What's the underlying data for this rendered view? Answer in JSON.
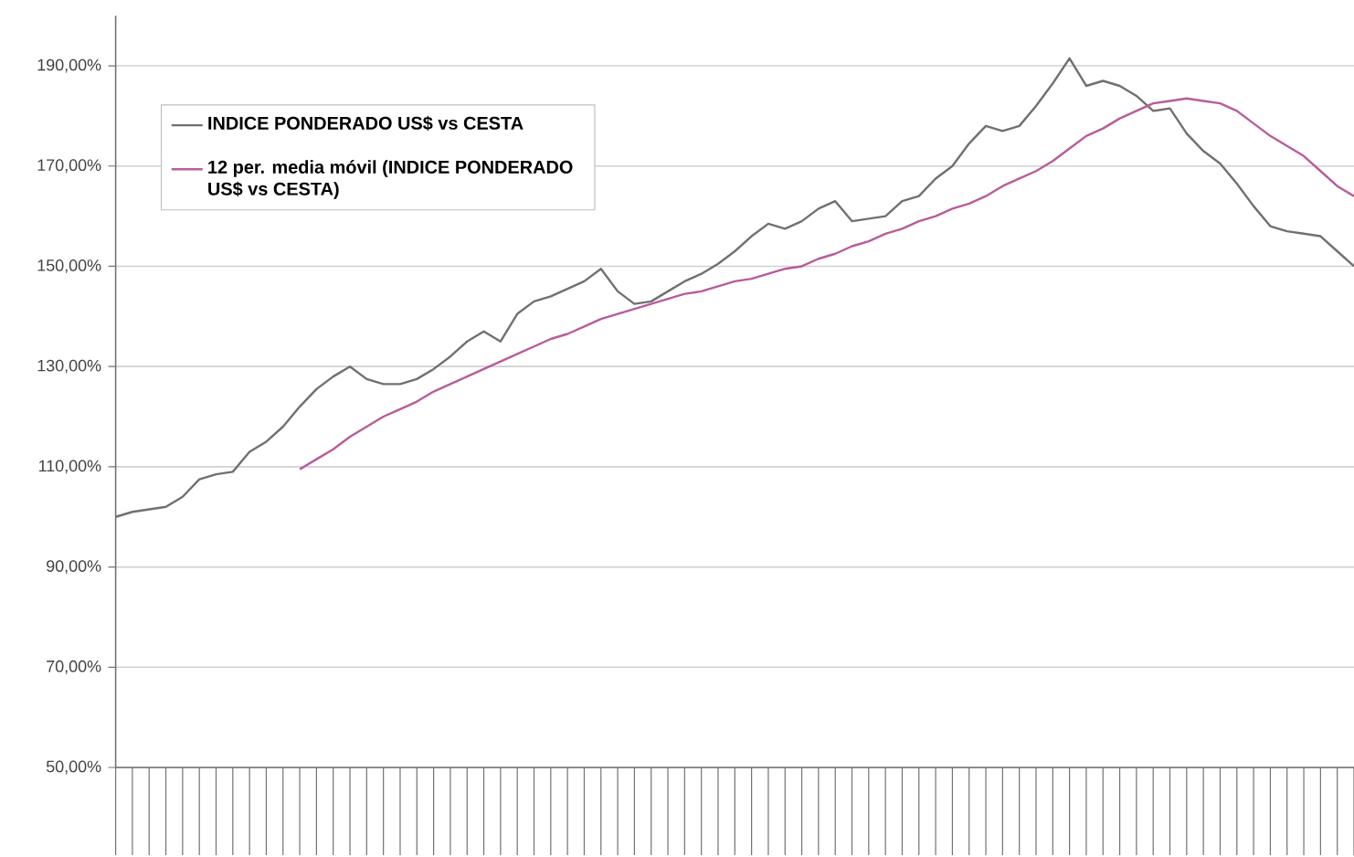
{
  "chart_data": {
    "type": "line",
    "categories": [
      null,
      null,
      null,
      null,
      null,
      null,
      null,
      null,
      null,
      null,
      null,
      null,
      null,
      null,
      null,
      null,
      null,
      null,
      null,
      null,
      null,
      null,
      null,
      null,
      null,
      null,
      null,
      null,
      null,
      null,
      null,
      null,
      null,
      null,
      null,
      null,
      null,
      null,
      null,
      null,
      null,
      null,
      null,
      null,
      null,
      null,
      null,
      null,
      null,
      null,
      null,
      null,
      null,
      null,
      null,
      null,
      null,
      null,
      null,
      null,
      null,
      null,
      null,
      null,
      null,
      null,
      null,
      null,
      null,
      null,
      null,
      null,
      null,
      null,
      null
    ],
    "series": [
      {
        "name": "INDICE PONDERADO US$ vs CESTA",
        "color": "#707070",
        "values": [
          100,
          101,
          101.5,
          102,
          104,
          107.5,
          108.5,
          109,
          113,
          115,
          118,
          122,
          125.5,
          128,
          130,
          127.5,
          126.5,
          126.5,
          127.5,
          129.5,
          132,
          135,
          137,
          135,
          140.5,
          143,
          144,
          145.5,
          147,
          149.5,
          145,
          142.5,
          143,
          145,
          147,
          148.5,
          150.5,
          153,
          156,
          158.5,
          157.5,
          159,
          161.5,
          163,
          159,
          159.5,
          160,
          163,
          164,
          167.5,
          170,
          174.5,
          178,
          177,
          178,
          182,
          186.5,
          191.5,
          186,
          187,
          186,
          184,
          181,
          181.5,
          176.5,
          173,
          170.5,
          166.5,
          162,
          158,
          157,
          156.5,
          156,
          153,
          150
        ]
      },
      {
        "name": "12 per. media móvil (INDICE PONDERADO US$ vs CESTA)",
        "color": "#b85c9a",
        "values": [
          null,
          null,
          null,
          null,
          null,
          null,
          null,
          null,
          null,
          null,
          null,
          109.5,
          111.5,
          113.5,
          116,
          118,
          120,
          121.5,
          123,
          125,
          126.5,
          128,
          129.5,
          131,
          132.5,
          134,
          135.5,
          136.5,
          138,
          139.5,
          140.5,
          141.5,
          142.5,
          143.5,
          144.5,
          145,
          146,
          147,
          147.5,
          148.5,
          149.5,
          150,
          151.5,
          152.5,
          154,
          155,
          156.5,
          157.5,
          159,
          160,
          161.5,
          162.5,
          164,
          166,
          167.5,
          169,
          171,
          173.5,
          176,
          177.5,
          179.5,
          181,
          182.5,
          183,
          183.5,
          183,
          182.5,
          181,
          178.5,
          176,
          174,
          172,
          169,
          166,
          164
        ]
      }
    ],
    "ylim": [
      50,
      200
    ],
    "yticks": [
      {
        "value": 50,
        "label": "50,00%"
      },
      {
        "value": 70,
        "label": "70,00%"
      },
      {
        "value": 90,
        "label": "90,00%"
      },
      {
        "value": 110,
        "label": "110,00%"
      },
      {
        "value": 130,
        "label": "130,00%"
      },
      {
        "value": 150,
        "label": "150,00%"
      },
      {
        "value": 170,
        "label": "170,00%"
      },
      {
        "value": 190,
        "label": "190,00%"
      }
    ],
    "grid": "y",
    "legend": "top left"
  }
}
